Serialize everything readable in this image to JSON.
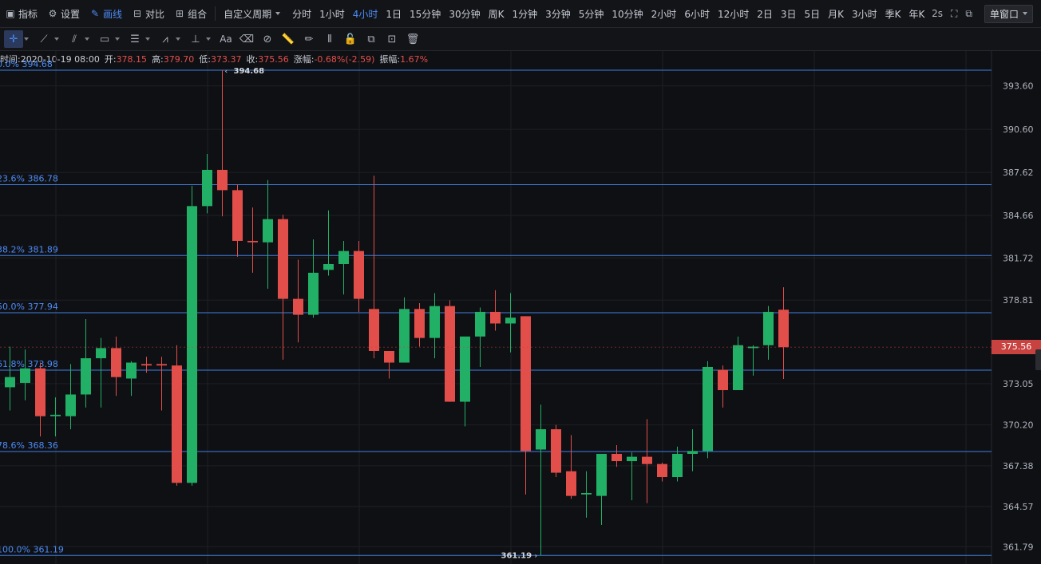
{
  "toolbar": {
    "items": [
      {
        "label": "指标",
        "icon": "indicator-icon",
        "active": false
      },
      {
        "label": "设置",
        "icon": "settings-icon",
        "active": false
      },
      {
        "label": "画线",
        "icon": "draw-line-icon",
        "active": true
      },
      {
        "label": "对比",
        "icon": "compare-icon",
        "active": false
      },
      {
        "label": "组合",
        "icon": "combine-icon",
        "active": false
      }
    ],
    "custom_period": "自定义周期",
    "periods": [
      "分时",
      "1小时",
      "4小时",
      "1日",
      "15分钟",
      "30分钟",
      "周K",
      "1分钟",
      "3分钟",
      "5分钟",
      "10分钟",
      "2小时",
      "6小时",
      "12小时",
      "2日",
      "3日",
      "5日",
      "月K",
      "3小时",
      "季K",
      "年K"
    ],
    "active_period": "4小时",
    "refresh": "2s",
    "window_mode": "单窗口"
  },
  "drawing_tools": [
    {
      "icon": "crosshair-icon",
      "dropdown": true,
      "selected": true
    },
    {
      "icon": "trend-line-icon",
      "dropdown": true
    },
    {
      "icon": "channel-icon",
      "dropdown": true
    },
    {
      "icon": "rectangle-icon",
      "dropdown": true
    },
    {
      "icon": "fibonacci-icon",
      "dropdown": true
    },
    {
      "icon": "pattern-icon",
      "dropdown": true
    },
    {
      "icon": "measure-icon",
      "dropdown": true
    },
    {
      "icon": "text-icon",
      "label": "Aa"
    },
    {
      "icon": "eraser-icon"
    },
    {
      "icon": "magnet-icon"
    },
    {
      "icon": "ruler-icon"
    },
    {
      "icon": "pencil-icon"
    },
    {
      "icon": "candle-toggle-icon"
    },
    {
      "icon": "lock-icon"
    },
    {
      "icon": "copy-icon"
    },
    {
      "icon": "hide-drawings-icon"
    },
    {
      "icon": "trash-icon"
    }
  ],
  "ohlc_info": {
    "time_label": "时间:",
    "time": "2020-10-19 08:00",
    "open_label": "开:",
    "open": "378.15",
    "high_label": "高:",
    "high": "379.70",
    "low_label": "低:",
    "low": "373.37",
    "close_label": "收:",
    "close": "375.56",
    "change_label": "涨幅:",
    "change": "-0.68%(-2.59)",
    "amplitude_label": "振幅:",
    "amplitude": "1.67%"
  },
  "chart_data": {
    "type": "candlestick",
    "y_axis": {
      "ticks": [
        393.6,
        390.6,
        387.62,
        384.66,
        381.72,
        378.81,
        375.56,
        373.05,
        370.2,
        367.38,
        364.57,
        361.79
      ],
      "tick_labels": [
        "393.60",
        "390.60",
        "387.62",
        "384.66",
        "381.72",
        "378.81",
        "375.56",
        "373.05",
        "370.20",
        "367.38",
        "364.57",
        "361.79"
      ],
      "min": 360.6,
      "max": 396.0
    },
    "current_price": "375.56",
    "colors": {
      "up": "#22b066",
      "down": "#e24e4a",
      "fib": "#3f7fe0",
      "fib_text": "#4c8bf5",
      "grid": "#1d1f24",
      "axis_text": "#aeb3bc"
    },
    "fib_levels": [
      {
        "label": "0.0% 394.68",
        "value": 394.68
      },
      {
        "label": "23.6% 386.78",
        "value": 386.78
      },
      {
        "label": "38.2% 381.89",
        "value": 381.89
      },
      {
        "label": "50.0% 377.94",
        "value": 377.94
      },
      {
        "label": "61.8% 373.98",
        "value": 373.98
      },
      {
        "label": "78.6% 368.36",
        "value": 368.36
      },
      {
        "label": "100.0% 361.19",
        "value": 361.19
      }
    ],
    "high_marker": {
      "label": "394.68",
      "value": 394.68,
      "candle_index": 14
    },
    "low_marker": {
      "label": "361.19",
      "value": 361.19,
      "candle_index": 35
    },
    "candles": [
      {
        "o": 372.8,
        "h": 375.6,
        "l": 371.2,
        "c": 373.5
      },
      {
        "o": 373.1,
        "h": 375.4,
        "l": 371.9,
        "c": 374.1
      },
      {
        "o": 374.1,
        "h": 374.5,
        "l": 369.4,
        "c": 370.8
      },
      {
        "o": 370.8,
        "h": 372.1,
        "l": 369.4,
        "c": 370.9
      },
      {
        "o": 370.8,
        "h": 374.4,
        "l": 369.9,
        "c": 372.3
      },
      {
        "o": 372.3,
        "h": 377.5,
        "l": 371.4,
        "c": 374.8
      },
      {
        "o": 374.8,
        "h": 376.2,
        "l": 371.4,
        "c": 375.5
      },
      {
        "o": 375.5,
        "h": 376.3,
        "l": 372.2,
        "c": 373.5
      },
      {
        "o": 373.4,
        "h": 374.6,
        "l": 372.2,
        "c": 374.5
      },
      {
        "o": 374.4,
        "h": 374.9,
        "l": 373.8,
        "c": 374.3
      },
      {
        "o": 374.4,
        "h": 374.9,
        "l": 371.2,
        "c": 374.3
      },
      {
        "o": 374.3,
        "h": 375.7,
        "l": 366.0,
        "c": 366.2
      },
      {
        "o": 366.2,
        "h": 386.7,
        "l": 366.0,
        "c": 385.3
      },
      {
        "o": 385.3,
        "h": 388.9,
        "l": 384.8,
        "c": 387.8
      },
      {
        "o": 387.8,
        "h": 394.68,
        "l": 384.6,
        "c": 386.4
      },
      {
        "o": 386.4,
        "h": 386.8,
        "l": 381.8,
        "c": 382.9
      },
      {
        "o": 382.9,
        "h": 385.2,
        "l": 380.7,
        "c": 382.8
      },
      {
        "o": 382.8,
        "h": 387.1,
        "l": 379.6,
        "c": 384.4
      },
      {
        "o": 384.4,
        "h": 384.7,
        "l": 374.7,
        "c": 378.9
      },
      {
        "o": 378.9,
        "h": 381.6,
        "l": 375.9,
        "c": 377.8
      },
      {
        "o": 377.8,
        "h": 383.0,
        "l": 377.6,
        "c": 380.7
      },
      {
        "o": 380.9,
        "h": 385.0,
        "l": 380.5,
        "c": 381.3
      },
      {
        "o": 381.3,
        "h": 382.9,
        "l": 379.2,
        "c": 382.2
      },
      {
        "o": 382.2,
        "h": 382.9,
        "l": 378.0,
        "c": 378.9
      },
      {
        "o": 378.2,
        "h": 387.4,
        "l": 374.8,
        "c": 375.3
      },
      {
        "o": 375.3,
        "h": 375.3,
        "l": 373.4,
        "c": 374.5
      },
      {
        "o": 374.5,
        "h": 379.0,
        "l": 374.5,
        "c": 378.2
      },
      {
        "o": 378.2,
        "h": 378.6,
        "l": 375.6,
        "c": 376.2
      },
      {
        "o": 376.2,
        "h": 379.3,
        "l": 374.8,
        "c": 378.4
      },
      {
        "o": 378.4,
        "h": 378.8,
        "l": 371.8,
        "c": 371.8
      },
      {
        "o": 371.8,
        "h": 376.2,
        "l": 370.1,
        "c": 376.3
      },
      {
        "o": 376.3,
        "h": 378.3,
        "l": 374.2,
        "c": 378.0
      },
      {
        "o": 378.0,
        "h": 379.5,
        "l": 376.7,
        "c": 377.2
      },
      {
        "o": 377.2,
        "h": 379.3,
        "l": 375.2,
        "c": 377.6
      },
      {
        "o": 377.7,
        "h": 377.7,
        "l": 365.4,
        "c": 368.4
      },
      {
        "o": 368.5,
        "h": 371.6,
        "l": 361.19,
        "c": 369.9
      },
      {
        "o": 369.9,
        "h": 370.2,
        "l": 366.6,
        "c": 366.9
      },
      {
        "o": 367.0,
        "h": 369.5,
        "l": 365.1,
        "c": 365.3
      },
      {
        "o": 365.4,
        "h": 367.0,
        "l": 363.8,
        "c": 365.5
      },
      {
        "o": 365.3,
        "h": 368.1,
        "l": 363.3,
        "c": 368.2
      },
      {
        "o": 368.2,
        "h": 368.8,
        "l": 367.3,
        "c": 367.7
      },
      {
        "o": 367.7,
        "h": 368.3,
        "l": 365.0,
        "c": 368.0
      },
      {
        "o": 368.0,
        "h": 370.6,
        "l": 364.8,
        "c": 367.5
      },
      {
        "o": 367.5,
        "h": 367.6,
        "l": 366.3,
        "c": 366.6
      },
      {
        "o": 366.6,
        "h": 368.7,
        "l": 366.3,
        "c": 368.2
      },
      {
        "o": 368.2,
        "h": 369.9,
        "l": 367.0,
        "c": 368.4
      },
      {
        "o": 368.4,
        "h": 374.6,
        "l": 367.9,
        "c": 374.2
      },
      {
        "o": 374.0,
        "h": 374.3,
        "l": 371.4,
        "c": 372.6
      },
      {
        "o": 372.6,
        "h": 376.3,
        "l": 372.6,
        "c": 375.7
      },
      {
        "o": 375.5,
        "h": 375.7,
        "l": 373.6,
        "c": 375.6
      },
      {
        "o": 375.7,
        "h": 378.4,
        "l": 374.7,
        "c": 378.0
      },
      {
        "o": 378.15,
        "h": 379.7,
        "l": 373.37,
        "c": 375.56
      }
    ]
  }
}
